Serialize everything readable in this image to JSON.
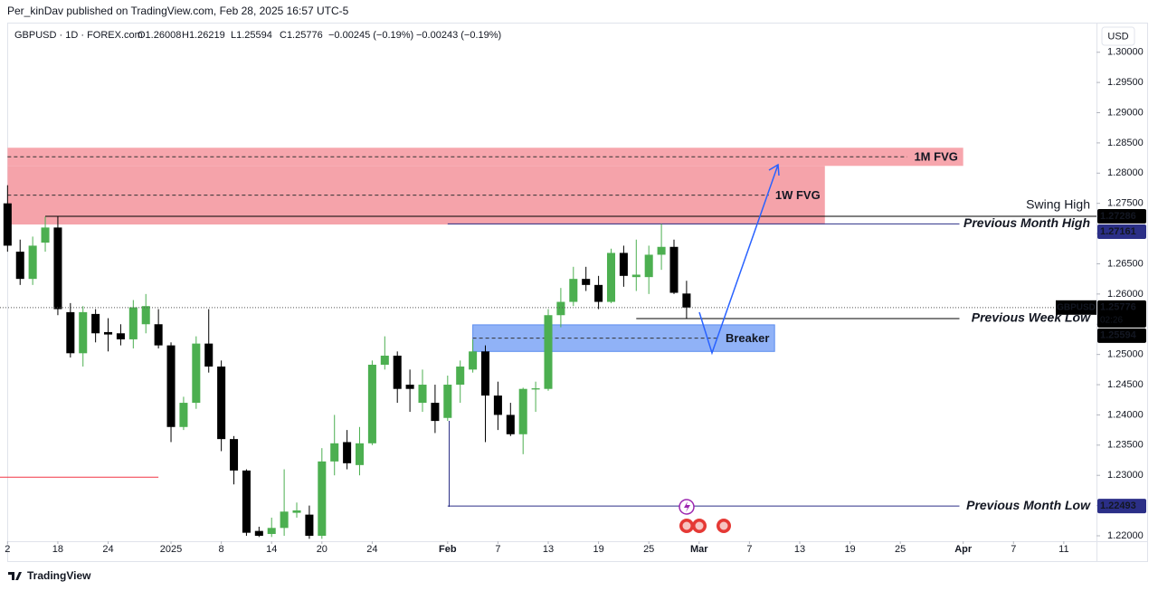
{
  "chart_data": {
    "type": "candlestick",
    "publisher": "Per_kinDav published on TradingView.com, Feb 28, 2025 16:57 UTC-5",
    "symbol": "GBPUSD · 1D · FOREX.com",
    "ohlc_text": [
      "O1.26008",
      "H1.26219",
      "L1.25594",
      "C1.25776",
      "−0.00245 (−0.19%)",
      "−0.00243 (−0.19%)"
    ],
    "currency": "USD",
    "footer": "TradingView",
    "up_color": "#4caf50",
    "down_color": "#000000",
    "x": [
      -4,
      -3,
      -2,
      -1,
      0,
      1,
      2,
      3,
      4,
      5,
      6,
      7,
      8,
      9,
      10,
      11,
      12,
      13,
      14,
      15,
      16,
      17,
      18,
      19,
      20,
      21,
      22,
      23,
      24,
      25,
      26,
      27,
      28,
      29,
      30,
      31,
      32,
      33,
      34,
      35,
      36,
      37,
      38,
      39,
      40,
      41,
      42,
      43,
      44,
      45,
      46,
      47,
      48,
      49,
      50
    ],
    "open": [
      1.275,
      1.267,
      1.2625,
      1.2685,
      1.271,
      1.257,
      1.2502,
      1.2567,
      1.2537,
      1.2535,
      1.2525,
      1.255,
      1.255,
      1.2515,
      1.238,
      1.242,
      1.2518,
      1.248,
      1.236,
      1.2308,
      1.2208,
      1.2203,
      1.2213,
      1.2238,
      1.2235,
      1.22,
      1.2323,
      1.2355,
      1.2317,
      1.2353,
      1.2483,
      1.2498,
      1.245,
      1.242,
      1.242,
      1.2395,
      1.245,
      1.2475,
      1.2505,
      1.2432,
      1.24,
      1.2368,
      1.2442,
      1.2443,
      1.2565,
      1.2587,
      1.2625,
      1.2615,
      1.2587,
      1.2668,
      1.2628,
      1.2628,
      1.2665,
      1.2678,
      1.26008
    ],
    "high": [
      1.278,
      1.269,
      1.2695,
      1.2728,
      1.2728,
      1.2585,
      1.258,
      1.2575,
      1.256,
      1.255,
      1.259,
      1.26,
      1.2575,
      1.252,
      1.243,
      1.253,
      1.2575,
      1.249,
      1.2365,
      1.231,
      1.2215,
      1.223,
      1.231,
      1.2255,
      1.225,
      1.2345,
      1.24,
      1.2375,
      1.238,
      1.249,
      1.253,
      1.2505,
      1.2475,
      1.2475,
      1.245,
      1.2465,
      1.249,
      1.2525,
      1.2515,
      1.2455,
      1.242,
      1.2445,
      1.2455,
      1.2575,
      1.261,
      1.2645,
      1.2645,
      1.263,
      1.2675,
      1.268,
      1.269,
      1.268,
      1.2716,
      1.269,
      1.26219
    ],
    "low": [
      1.267,
      1.2615,
      1.2615,
      1.267,
      1.2565,
      1.2495,
      1.248,
      1.252,
      1.2505,
      1.2515,
      1.251,
      1.2535,
      1.251,
      1.2355,
      1.2375,
      1.241,
      1.247,
      1.234,
      1.2285,
      1.22,
      1.2198,
      1.2198,
      1.22,
      1.223,
      1.2195,
      1.2195,
      1.23,
      1.231,
      1.23,
      1.235,
      1.2475,
      1.242,
      1.2405,
      1.2405,
      1.237,
      1.239,
      1.242,
      1.247,
      1.2355,
      1.2375,
      1.2365,
      1.2335,
      1.2405,
      1.244,
      1.2545,
      1.258,
      1.2605,
      1.2575,
      1.2585,
      1.2612,
      1.2605,
      1.26,
      1.264,
      1.26,
      1.25594
    ],
    "close": [
      1.268,
      1.2625,
      1.268,
      1.271,
      1.2575,
      1.2502,
      1.257,
      1.2535,
      1.2533,
      1.2525,
      1.2578,
      1.258,
      1.2515,
      1.238,
      1.242,
      1.2518,
      1.248,
      1.236,
      1.2308,
      1.2205,
      1.22,
      1.2213,
      1.224,
      1.2242,
      1.22,
      1.2323,
      1.2353,
      1.232,
      1.2353,
      1.2483,
      1.2498,
      1.2443,
      1.2443,
      1.245,
      1.239,
      1.245,
      1.248,
      1.2505,
      1.2432,
      1.24,
      1.2368,
      1.2443,
      1.2444,
      1.2565,
      1.2587,
      1.2625,
      1.2615,
      1.2587,
      1.2668,
      1.263,
      1.2632,
      1.2665,
      1.2678,
      1.2602,
      1.25776
    ],
    "xlim": [
      -4.6,
      82.6
    ],
    "xticks": [
      {
        "value": -4,
        "label": "2"
      },
      {
        "value": 0,
        "label": "18"
      },
      {
        "value": 4,
        "label": "24"
      },
      {
        "value": 9,
        "label": "2025"
      },
      {
        "value": 13,
        "label": "8"
      },
      {
        "value": 17,
        "label": "14"
      },
      {
        "value": 21,
        "label": "20"
      },
      {
        "value": 25,
        "label": "24"
      },
      {
        "value": 31,
        "label": "Feb"
      },
      {
        "value": 35,
        "label": "7"
      },
      {
        "value": 39,
        "label": "13"
      },
      {
        "value": 43,
        "label": "19"
      },
      {
        "value": 47,
        "label": "25"
      },
      {
        "value": 51,
        "label": "Mar"
      },
      {
        "value": 55,
        "label": "7"
      },
      {
        "value": 59,
        "label": "13"
      },
      {
        "value": 63,
        "label": "19"
      },
      {
        "value": 67,
        "label": "25"
      },
      {
        "value": 72,
        "label": "Apr"
      },
      {
        "value": 76,
        "label": "7"
      },
      {
        "value": 80,
        "label": "11"
      }
    ],
    "ylim": [
      1.2191,
      1.3049
    ],
    "yticks": [
      {
        "value": 1.22,
        "label": "1.22000"
      },
      {
        "value": 1.225,
        "label": "1.22500"
      },
      {
        "value": 1.23,
        "label": "1.23000"
      },
      {
        "value": 1.235,
        "label": "1.23500"
      },
      {
        "value": 1.24,
        "label": "1.24000"
      },
      {
        "value": 1.245,
        "label": "1.24500"
      },
      {
        "value": 1.25,
        "label": "1.25000"
      },
      {
        "value": 1.255,
        "label": "1.25500"
      },
      {
        "value": 1.26,
        "label": "1.26000"
      },
      {
        "value": 1.265,
        "label": "1.26500"
      },
      {
        "value": 1.27,
        "label": "1.27000"
      },
      {
        "value": 1.275,
        "label": "1.27500"
      },
      {
        "value": 1.28,
        "label": "1.28000"
      },
      {
        "value": 1.285,
        "label": "1.28500"
      },
      {
        "value": 1.29,
        "label": "1.29000"
      },
      {
        "value": 1.295,
        "label": "1.29500"
      },
      {
        "value": 1.3,
        "label": "1.30000"
      }
    ],
    "zones": [
      {
        "name": "1M FVG",
        "low": 1.2812,
        "high": 1.2842,
        "x": [
          -4,
          72
        ],
        "color": "#f7a6ad"
      },
      {
        "name": "1W FVG",
        "low": 1.2715,
        "high": 1.2812,
        "x": [
          -4,
          61
        ],
        "color": "#f5a3aa"
      },
      {
        "name": "Breaker",
        "low": 1.2505,
        "high": 1.2549,
        "x": [
          33,
          57
        ],
        "color": "#90b2f7"
      }
    ],
    "levels": [
      {
        "name": "Swing High",
        "value": 1.27286,
        "x": [
          -1,
          82.6
        ],
        "color": "#000000",
        "badge_color": "#000000",
        "text_color": "#131722"
      },
      {
        "name": "Previous Month High",
        "value": 1.27161,
        "x": [
          31,
          71.7
        ],
        "color": "#2b2f87",
        "badge_color": "#2b2f87",
        "text_color": "#2b2f87"
      },
      {
        "name": "Previous Week Low",
        "value": 1.25594,
        "x": [
          46,
          71.7
        ],
        "color": "#000000",
        "badge_color": "#000000",
        "text_color": "#131722"
      },
      {
        "name": "Previous Month Low",
        "value": 1.22493,
        "x": [
          31,
          71.7
        ],
        "color": "#2b2f87",
        "badge_color": "#2b2f87",
        "text_color": "#2b2f87"
      },
      {
        "value": 1.2297,
        "x": [
          -4.6,
          8
        ],
        "color": "#f23645"
      }
    ],
    "last": {
      "name": "GBPUSD",
      "value": 1.25776,
      "countdown": "02:26"
    }
  }
}
